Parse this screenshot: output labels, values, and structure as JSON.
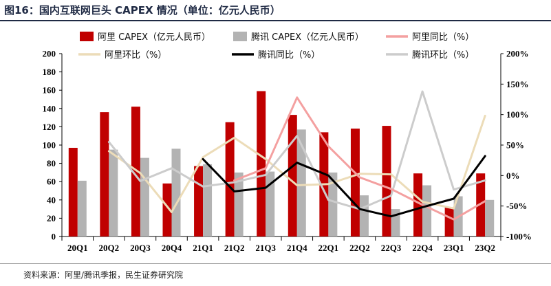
{
  "figure": {
    "title": "图16：国内互联网巨头 CAPEX 情况（单位：亿元人民币）",
    "source": "资料来源：阿里/腾讯季报，民生证券研究院"
  },
  "chart_data": {
    "type": "bar",
    "categories": [
      "20Q1",
      "20Q2",
      "20Q3",
      "20Q4",
      "21Q1",
      "21Q2",
      "21Q3",
      "21Q4",
      "22Q1",
      "22Q2",
      "22Q3",
      "22Q4",
      "23Q1",
      "23Q2"
    ],
    "y_left": {
      "lim": [
        0,
        200
      ],
      "ticks": [
        0,
        20,
        40,
        60,
        80,
        100,
        120,
        140,
        160,
        180,
        200
      ],
      "tick_labels": [
        "0",
        "20",
        "40",
        "60",
        "80",
        "100",
        "120",
        "140",
        "160",
        "180",
        "200"
      ]
    },
    "y_right": {
      "lim": [
        -100,
        200
      ],
      "ticks": [
        -100,
        -50,
        0,
        50,
        100,
        150,
        200
      ],
      "tick_labels": [
        "-100%",
        "-50%",
        "0%",
        "50%",
        "100%",
        "150%",
        "200%"
      ]
    },
    "series": [
      {
        "name": "阿里 CAPEX（亿元人民币）",
        "kind": "bar",
        "axis": "left",
        "color": "#c00000",
        "values": [
          97,
          136,
          142,
          58,
          77,
          125,
          159,
          133,
          114,
          118,
          121,
          69,
          32,
          69
        ]
      },
      {
        "name": "腾讯 CAPEX（亿元人民币）",
        "kind": "bar",
        "axis": "left",
        "color": "#b3b3b3",
        "values": [
          61,
          95,
          86,
          96,
          79,
          70,
          71,
          117,
          70,
          45,
          30,
          56,
          44,
          40
        ]
      },
      {
        "name": "阿里同比（%）",
        "kind": "line",
        "axis": "right",
        "color": "#f4a0a0",
        "values": [
          null,
          null,
          null,
          null,
          null,
          -8,
          12,
          128,
          48,
          -3,
          -22,
          -48,
          -72,
          -42
        ]
      },
      {
        "name": "腾讯同比（%）",
        "kind": "line",
        "axis": "right",
        "color": "#000000",
        "values": [
          null,
          null,
          null,
          null,
          27,
          -26,
          -20,
          21,
          0,
          -55,
          -67,
          -52,
          -38,
          32
        ]
      },
      {
        "name": "阿里环比（%）",
        "kind": "line",
        "axis": "right",
        "color": "#ecdcb8",
        "values": [
          null,
          40,
          4,
          -60,
          30,
          62,
          27,
          -16,
          -14,
          3,
          2,
          -43,
          -54,
          98
        ]
      },
      {
        "name": "腾讯环比（%）",
        "kind": "line",
        "axis": "right",
        "color": "#cccccc",
        "values": [
          null,
          55,
          -9,
          12,
          -18,
          -11,
          1,
          65,
          -40,
          -55,
          -33,
          138,
          -23,
          -8
        ]
      }
    ],
    "legend_position": "top",
    "grid": false
  }
}
